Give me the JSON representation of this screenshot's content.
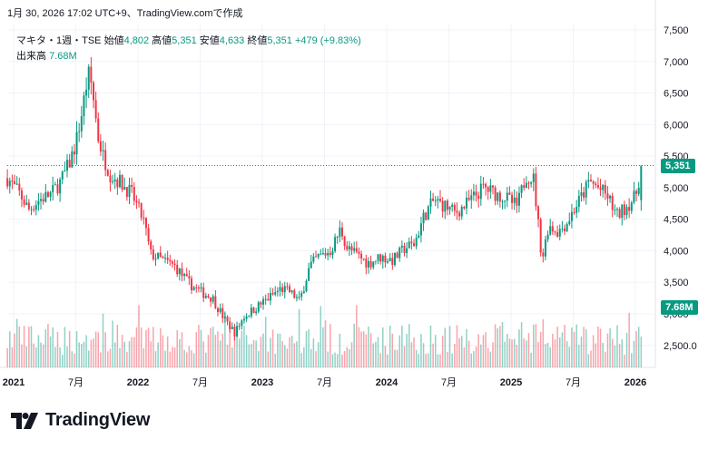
{
  "header": {
    "timestamp": "1月 30, 2026 17:02 UTC+9、TradingView.comで作成"
  },
  "legend": {
    "symbol": "マキタ・1週・TSE",
    "open_label": "始値",
    "open": "4,802",
    "high_label": "高値",
    "high": "5,351",
    "low_label": "安値",
    "low": "4,633",
    "close_label": "終値",
    "close": "5,351",
    "change": "+479 (+9.83%)",
    "volume_label": "出来高",
    "volume": "7.68M"
  },
  "badges": {
    "last_price": "5,351",
    "last_volume": "7.68M"
  },
  "brand": {
    "name": "TradingView",
    "icon": "tradingview-logo-icon"
  },
  "colors": {
    "up": "#089981",
    "down": "#f23645",
    "grid": "#f0f3fa",
    "text": "#131722"
  },
  "chart_data": {
    "type": "candlestick",
    "interval": "weekly",
    "y_ticks": [
      "7,500",
      "7,000",
      "6,500",
      "6,000",
      "5,500",
      "5,000",
      "4,500",
      "4,000",
      "3,500",
      "3,000",
      "2,500.0"
    ],
    "y_tick_values": [
      7500,
      7000,
      6500,
      6000,
      5500,
      5000,
      4500,
      4000,
      3500,
      3000,
      2500
    ],
    "x_ticks": [
      "2021",
      "7月",
      "2022",
      "7月",
      "2023",
      "7月",
      "2024",
      "7月",
      "2025",
      "7月",
      "2026"
    ],
    "x_tick_values": [
      2021.0,
      2021.5,
      2022.0,
      2022.5,
      2023.0,
      2023.5,
      2024.0,
      2024.5,
      2025.0,
      2025.5,
      2026.0
    ],
    "price_path": [
      [
        2020.95,
        5150
      ],
      [
        2021.05,
        4900
      ],
      [
        2021.12,
        4650
      ],
      [
        2021.2,
        4800
      ],
      [
        2021.3,
        4900
      ],
      [
        2021.38,
        5100
      ],
      [
        2021.45,
        5400
      ],
      [
        2021.5,
        5700
      ],
      [
        2021.55,
        6200
      ],
      [
        2021.6,
        6800
      ],
      [
        2021.63,
        6600
      ],
      [
        2021.68,
        5800
      ],
      [
        2021.72,
        5500
      ],
      [
        2021.78,
        5200
      ],
      [
        2021.85,
        5100
      ],
      [
        2021.95,
        4900
      ],
      [
        2022.05,
        4450
      ],
      [
        2022.1,
        3950
      ],
      [
        2022.2,
        3850
      ],
      [
        2022.3,
        3750
      ],
      [
        2022.4,
        3500
      ],
      [
        2022.5,
        3350
      ],
      [
        2022.6,
        3250
      ],
      [
        2022.7,
        2900
      ],
      [
        2022.78,
        2700
      ],
      [
        2022.85,
        2950
      ],
      [
        2022.95,
        3100
      ],
      [
        2023.05,
        3250
      ],
      [
        2023.15,
        3400
      ],
      [
        2023.22,
        3350
      ],
      [
        2023.3,
        3200
      ],
      [
        2023.38,
        3750
      ],
      [
        2023.45,
        3900
      ],
      [
        2023.55,
        4000
      ],
      [
        2023.63,
        4350
      ],
      [
        2023.68,
        4050
      ],
      [
        2023.75,
        3950
      ],
      [
        2023.85,
        3800
      ],
      [
        2023.95,
        3900
      ],
      [
        2024.05,
        3850
      ],
      [
        2024.15,
        4050
      ],
      [
        2024.22,
        4100
      ],
      [
        2024.3,
        4550
      ],
      [
        2024.38,
        4800
      ],
      [
        2024.48,
        4700
      ],
      [
        2024.55,
        4600
      ],
      [
        2024.62,
        4700
      ],
      [
        2024.7,
        4850
      ],
      [
        2024.78,
        5000
      ],
      [
        2024.88,
        4900
      ],
      [
        2024.95,
        4850
      ],
      [
        2025.05,
        4700
      ],
      [
        2025.12,
        5200
      ],
      [
        2025.18,
        5150
      ],
      [
        2025.25,
        3850
      ],
      [
        2025.3,
        4400
      ],
      [
        2025.38,
        4300
      ],
      [
        2025.45,
        4450
      ],
      [
        2025.52,
        4700
      ],
      [
        2025.58,
        4900
      ],
      [
        2025.63,
        5100
      ],
      [
        2025.7,
        5000
      ],
      [
        2025.78,
        4850
      ],
      [
        2025.85,
        4550
      ],
      [
        2025.9,
        4650
      ],
      [
        2025.95,
        4750
      ],
      [
        2026.0,
        4850
      ],
      [
        2026.05,
        5351
      ]
    ],
    "last_close": 5351,
    "last_volume_millions": 7.68
  }
}
